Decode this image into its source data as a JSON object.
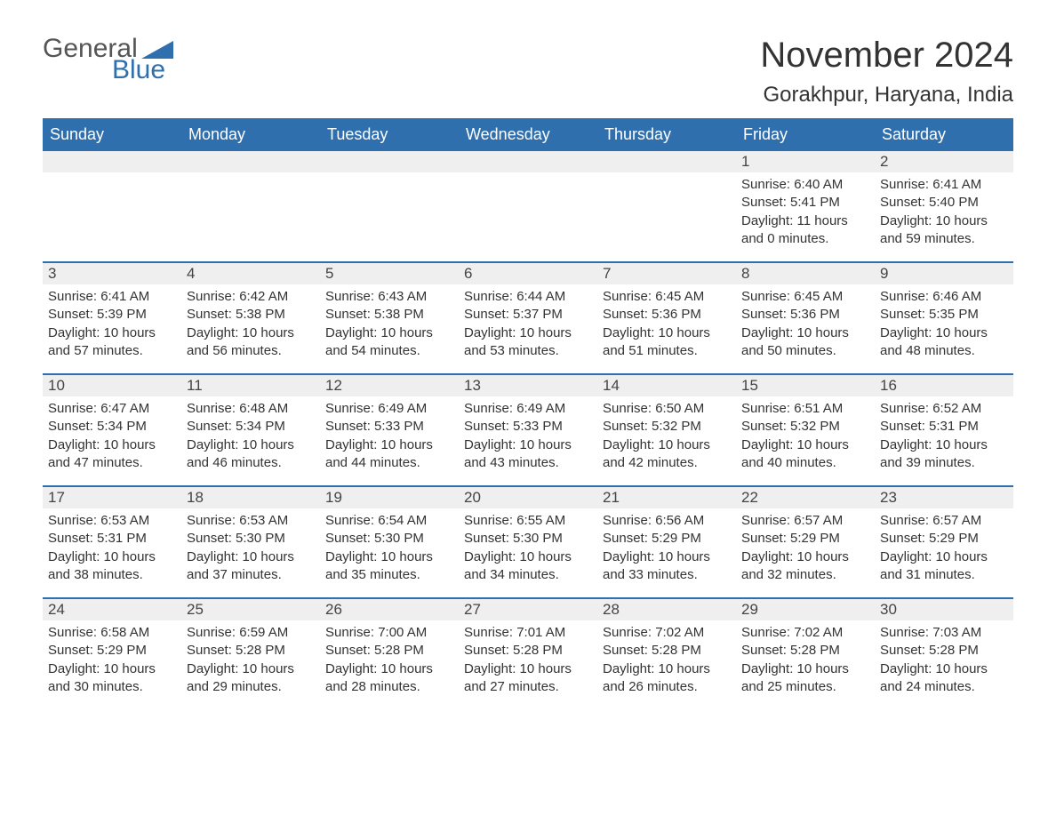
{
  "brand": {
    "part1": "General",
    "part2": "Blue"
  },
  "title": "November 2024",
  "location": "Gorakhpur, Haryana, India",
  "colors": {
    "accent": "#2f6fae",
    "header_bg": "#2f6fae",
    "header_text": "#ffffff",
    "daynum_bg": "#efefef",
    "text": "#333333",
    "background": "#ffffff"
  },
  "typography": {
    "title_fontsize": 40,
    "location_fontsize": 24,
    "dayhead_fontsize": 18,
    "body_fontsize": 15
  },
  "calendar": {
    "type": "table",
    "columns": [
      "Sunday",
      "Monday",
      "Tuesday",
      "Wednesday",
      "Thursday",
      "Friday",
      "Saturday"
    ],
    "weeks": [
      [
        null,
        null,
        null,
        null,
        null,
        {
          "day": "1",
          "sunrise": "Sunrise: 6:40 AM",
          "sunset": "Sunset: 5:41 PM",
          "daylight": "Daylight: 11 hours and 0 minutes."
        },
        {
          "day": "2",
          "sunrise": "Sunrise: 6:41 AM",
          "sunset": "Sunset: 5:40 PM",
          "daylight": "Daylight: 10 hours and 59 minutes."
        }
      ],
      [
        {
          "day": "3",
          "sunrise": "Sunrise: 6:41 AM",
          "sunset": "Sunset: 5:39 PM",
          "daylight": "Daylight: 10 hours and 57 minutes."
        },
        {
          "day": "4",
          "sunrise": "Sunrise: 6:42 AM",
          "sunset": "Sunset: 5:38 PM",
          "daylight": "Daylight: 10 hours and 56 minutes."
        },
        {
          "day": "5",
          "sunrise": "Sunrise: 6:43 AM",
          "sunset": "Sunset: 5:38 PM",
          "daylight": "Daylight: 10 hours and 54 minutes."
        },
        {
          "day": "6",
          "sunrise": "Sunrise: 6:44 AM",
          "sunset": "Sunset: 5:37 PM",
          "daylight": "Daylight: 10 hours and 53 minutes."
        },
        {
          "day": "7",
          "sunrise": "Sunrise: 6:45 AM",
          "sunset": "Sunset: 5:36 PM",
          "daylight": "Daylight: 10 hours and 51 minutes."
        },
        {
          "day": "8",
          "sunrise": "Sunrise: 6:45 AM",
          "sunset": "Sunset: 5:36 PM",
          "daylight": "Daylight: 10 hours and 50 minutes."
        },
        {
          "day": "9",
          "sunrise": "Sunrise: 6:46 AM",
          "sunset": "Sunset: 5:35 PM",
          "daylight": "Daylight: 10 hours and 48 minutes."
        }
      ],
      [
        {
          "day": "10",
          "sunrise": "Sunrise: 6:47 AM",
          "sunset": "Sunset: 5:34 PM",
          "daylight": "Daylight: 10 hours and 47 minutes."
        },
        {
          "day": "11",
          "sunrise": "Sunrise: 6:48 AM",
          "sunset": "Sunset: 5:34 PM",
          "daylight": "Daylight: 10 hours and 46 minutes."
        },
        {
          "day": "12",
          "sunrise": "Sunrise: 6:49 AM",
          "sunset": "Sunset: 5:33 PM",
          "daylight": "Daylight: 10 hours and 44 minutes."
        },
        {
          "day": "13",
          "sunrise": "Sunrise: 6:49 AM",
          "sunset": "Sunset: 5:33 PM",
          "daylight": "Daylight: 10 hours and 43 minutes."
        },
        {
          "day": "14",
          "sunrise": "Sunrise: 6:50 AM",
          "sunset": "Sunset: 5:32 PM",
          "daylight": "Daylight: 10 hours and 42 minutes."
        },
        {
          "day": "15",
          "sunrise": "Sunrise: 6:51 AM",
          "sunset": "Sunset: 5:32 PM",
          "daylight": "Daylight: 10 hours and 40 minutes."
        },
        {
          "day": "16",
          "sunrise": "Sunrise: 6:52 AM",
          "sunset": "Sunset: 5:31 PM",
          "daylight": "Daylight: 10 hours and 39 minutes."
        }
      ],
      [
        {
          "day": "17",
          "sunrise": "Sunrise: 6:53 AM",
          "sunset": "Sunset: 5:31 PM",
          "daylight": "Daylight: 10 hours and 38 minutes."
        },
        {
          "day": "18",
          "sunrise": "Sunrise: 6:53 AM",
          "sunset": "Sunset: 5:30 PM",
          "daylight": "Daylight: 10 hours and 37 minutes."
        },
        {
          "day": "19",
          "sunrise": "Sunrise: 6:54 AM",
          "sunset": "Sunset: 5:30 PM",
          "daylight": "Daylight: 10 hours and 35 minutes."
        },
        {
          "day": "20",
          "sunrise": "Sunrise: 6:55 AM",
          "sunset": "Sunset: 5:30 PM",
          "daylight": "Daylight: 10 hours and 34 minutes."
        },
        {
          "day": "21",
          "sunrise": "Sunrise: 6:56 AM",
          "sunset": "Sunset: 5:29 PM",
          "daylight": "Daylight: 10 hours and 33 minutes."
        },
        {
          "day": "22",
          "sunrise": "Sunrise: 6:57 AM",
          "sunset": "Sunset: 5:29 PM",
          "daylight": "Daylight: 10 hours and 32 minutes."
        },
        {
          "day": "23",
          "sunrise": "Sunrise: 6:57 AM",
          "sunset": "Sunset: 5:29 PM",
          "daylight": "Daylight: 10 hours and 31 minutes."
        }
      ],
      [
        {
          "day": "24",
          "sunrise": "Sunrise: 6:58 AM",
          "sunset": "Sunset: 5:29 PM",
          "daylight": "Daylight: 10 hours and 30 minutes."
        },
        {
          "day": "25",
          "sunrise": "Sunrise: 6:59 AM",
          "sunset": "Sunset: 5:28 PM",
          "daylight": "Daylight: 10 hours and 29 minutes."
        },
        {
          "day": "26",
          "sunrise": "Sunrise: 7:00 AM",
          "sunset": "Sunset: 5:28 PM",
          "daylight": "Daylight: 10 hours and 28 minutes."
        },
        {
          "day": "27",
          "sunrise": "Sunrise: 7:01 AM",
          "sunset": "Sunset: 5:28 PM",
          "daylight": "Daylight: 10 hours and 27 minutes."
        },
        {
          "day": "28",
          "sunrise": "Sunrise: 7:02 AM",
          "sunset": "Sunset: 5:28 PM",
          "daylight": "Daylight: 10 hours and 26 minutes."
        },
        {
          "day": "29",
          "sunrise": "Sunrise: 7:02 AM",
          "sunset": "Sunset: 5:28 PM",
          "daylight": "Daylight: 10 hours and 25 minutes."
        },
        {
          "day": "30",
          "sunrise": "Sunrise: 7:03 AM",
          "sunset": "Sunset: 5:28 PM",
          "daylight": "Daylight: 10 hours and 24 minutes."
        }
      ]
    ]
  }
}
